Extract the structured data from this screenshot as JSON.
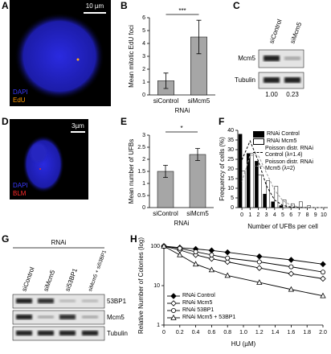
{
  "panel_labels": [
    "A",
    "B",
    "C",
    "D",
    "E",
    "F",
    "G",
    "H"
  ],
  "images": [
    {
      "scale_bar": "10 µm",
      "channels": [
        "DAPI",
        "EdU"
      ]
    },
    {
      "scale_bar": "3µm",
      "channels": [
        "DAPI",
        "BLM"
      ]
    }
  ],
  "blots": [
    {
      "lanes": [
        "siControl",
        "siMcm5"
      ],
      "rows": [
        "Mcm5",
        "Tubulin"
      ],
      "quantification": [
        "1.00",
        "0.23"
      ]
    },
    {
      "header": "RNAi",
      "lanes": [
        "siControl",
        "siMcm5",
        "si53BP1",
        "siMcm5 + si53BP1"
      ],
      "rows": [
        "53BP1",
        "Mcm5",
        "Tubulin"
      ]
    }
  ],
  "chart_data": [
    {
      "type": "bar",
      "ylabel": "Mean mitotic EdU foci",
      "xlabel": "RNAi",
      "categories": [
        "siControl",
        "siMcm5"
      ],
      "values": [
        1.1,
        4.5
      ],
      "errors": [
        0.6,
        1.3
      ],
      "color": "#a6a6a6",
      "ylim": [
        0,
        6
      ],
      "yticks": [
        0,
        1,
        2,
        3,
        4,
        5,
        6
      ],
      "significance": "***"
    },
    {
      "type": "bar",
      "ylabel": "Mean number of UFBs",
      "xlabel": "RNAi",
      "categories": [
        "siControl",
        "siMcm5"
      ],
      "values": [
        1.5,
        2.2
      ],
      "errors": [
        0.25,
        0.25
      ],
      "color": "#a6a6a6",
      "ylim": [
        0,
        3
      ],
      "yticks": [
        0,
        0.5,
        1,
        1.5,
        2,
        2.5,
        3
      ],
      "significance": "*"
    },
    {
      "type": "bar",
      "ylabel": "Frequency of cells (%)",
      "xlabel": "Number of UFBs per cell",
      "x": [
        0,
        1,
        2,
        3,
        4,
        5,
        6,
        7,
        8,
        9,
        10
      ],
      "xlim": [
        -0.5,
        10.5
      ],
      "xticks": [
        0,
        1,
        2,
        3,
        4,
        5,
        6,
        7,
        8,
        9,
        10
      ],
      "ylim": [
        0,
        40
      ],
      "yticks": [
        0,
        5,
        10,
        15,
        20,
        25,
        30,
        35,
        40
      ],
      "legend": "upper right",
      "series": [
        {
          "name": "RNAi Control",
          "color": "#000000",
          "values": [
            38,
            28,
            24,
            7,
            3,
            1,
            0,
            0,
            0,
            0,
            0
          ]
        },
        {
          "name": "RNAi Mcm5",
          "color": "#ffffff",
          "values": [
            19,
            28,
            17,
            14,
            11,
            4,
            2,
            3,
            1,
            0,
            0
          ]
        },
        {
          "name": "Poisson distr. RNAi Control (λ=1.4)",
          "color": "#000000",
          "style": "dashed",
          "values": [
            24.7,
            34.5,
            24.2,
            11.3,
            3.9,
            1.1,
            0.3,
            0.1,
            0,
            0,
            0
          ]
        },
        {
          "name": "Poisson distr. RNAi Mcm5 (λ=2)",
          "color": "#9a9a9a",
          "style": "dashed",
          "values": [
            13.5,
            27.1,
            27.1,
            18,
            9,
            3.6,
            1.2,
            0.3,
            0.1,
            0,
            0
          ]
        }
      ]
    },
    {
      "type": "line",
      "ylabel": "Relative Number of Colonies (log)",
      "xlabel": "HU (µM)",
      "x": [
        0,
        0.2,
        0.4,
        0.6,
        0.8,
        1.2,
        1.6,
        2
      ],
      "xlim": [
        0,
        2
      ],
      "xticks": [
        0,
        0.2,
        0.4,
        0.6,
        0.8,
        {
          "value": 1,
          "label": "1.0"
        },
        1.2,
        1.4,
        1.6,
        1.8,
        {
          "value": 2,
          "label": "2.0"
        }
      ],
      "ylog": true,
      "ylim": [
        1,
        100
      ],
      "yticks": [
        1,
        10,
        100
      ],
      "legend": "lower left",
      "series": [
        {
          "name": "RNAi Control",
          "color": "#000000",
          "marker": "diamond",
          "filled": true,
          "values": [
            100,
            92,
            85,
            78,
            70,
            55,
            45,
            35
          ]
        },
        {
          "name": "RNAi Mcm5",
          "color": "#000000",
          "marker": "diamond",
          "filled": false,
          "values": [
            100,
            80,
            60,
            48,
            40,
            28,
            20,
            15
          ]
        },
        {
          "name": "RNAi 53BP1",
          "color": "#000000",
          "marker": "circle",
          "filled": false,
          "values": [
            100,
            88,
            72,
            60,
            50,
            40,
            30,
            22
          ]
        },
        {
          "name": "RNAi Mcm5 + 53BP1",
          "color": "#000000",
          "marker": "triangle",
          "filled": false,
          "values": [
            100,
            60,
            35,
            25,
            18,
            12,
            8,
            5.5
          ]
        }
      ]
    }
  ]
}
